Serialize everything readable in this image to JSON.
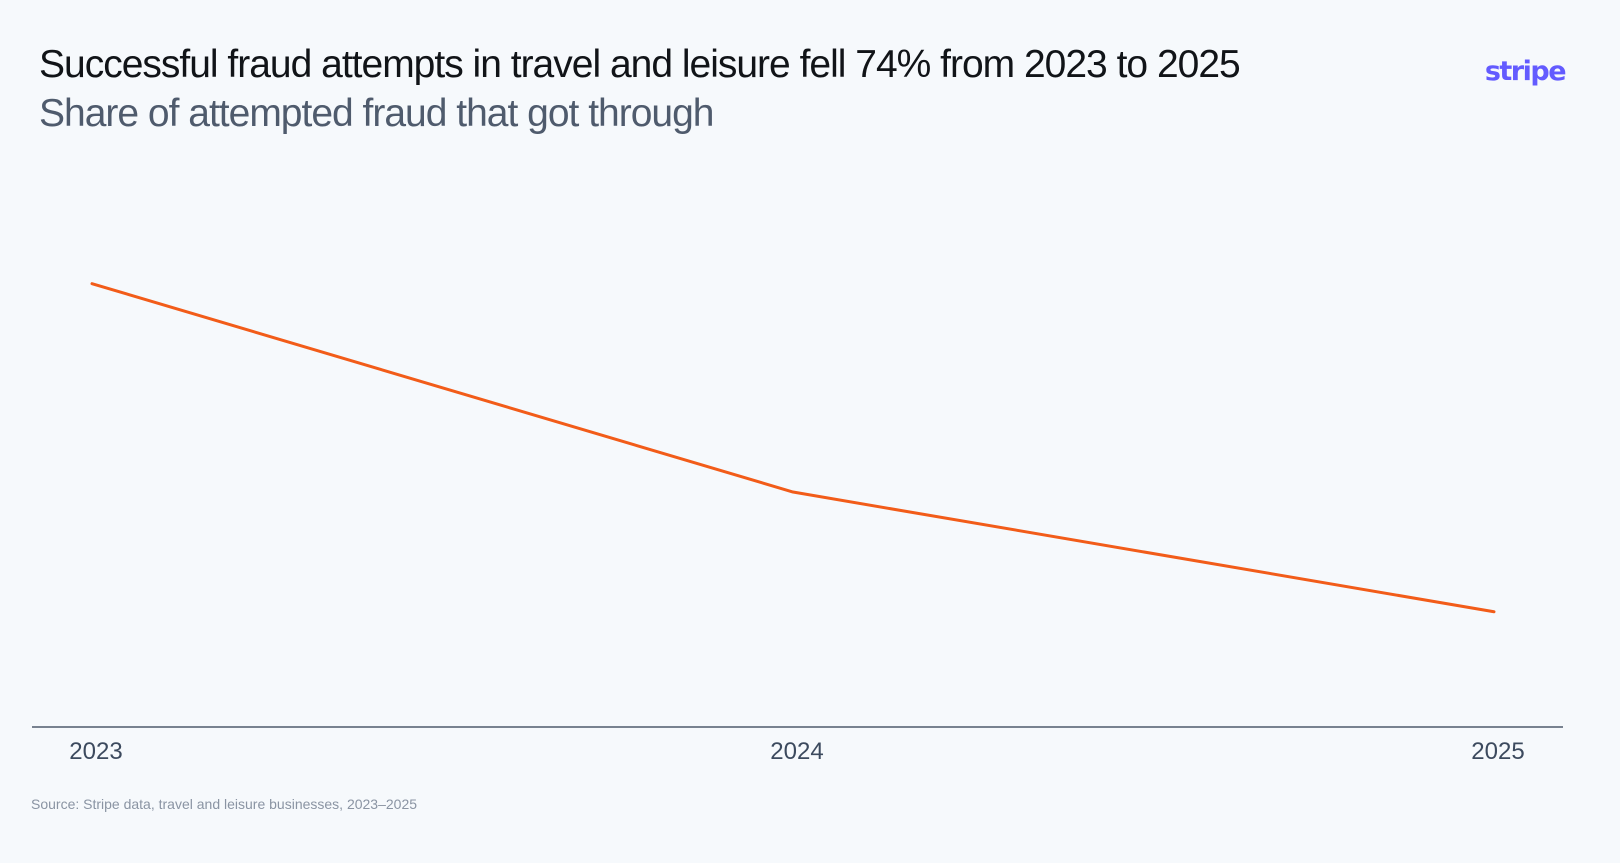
{
  "header": {
    "title": "Successful fraud attempts in travel and leisure fell 74% from 2023 to 2025",
    "subtitle": "Share of attempted fraud that got through",
    "logo_text": "stripe"
  },
  "footer": {
    "source": "Source: Stripe data, travel and leisure businesses, 2023–2025"
  },
  "colors": {
    "line": "#f25c19",
    "axis": "#4f5b6d",
    "logo": "#635bff",
    "background": "#f6f9fc"
  },
  "chart_data": {
    "type": "line",
    "title": "Successful fraud attempts in travel and leisure fell 74% from 2023 to 2025",
    "subtitle": "Share of attempted fraud that got through",
    "xlabel": "",
    "ylabel": "",
    "categories": [
      "2023",
      "2024",
      "2025"
    ],
    "values": [
      100,
      53,
      26
    ],
    "value_note": "indexed to 2023 = 100 (y-axis unlabeled)",
    "ylim": [
      0,
      120
    ],
    "grid": false,
    "legend": "none"
  }
}
